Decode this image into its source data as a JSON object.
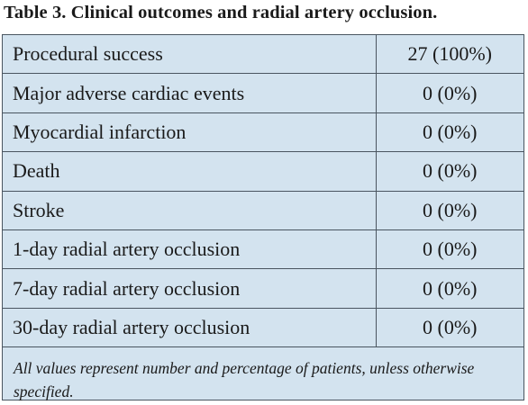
{
  "title": "Table 3. Clinical outcomes and radial artery occlusion.",
  "rows": [
    {
      "label": "Procedural success",
      "value": "27 (100%)"
    },
    {
      "label": "Major adverse cardiac events",
      "value": "0 (0%)"
    },
    {
      "label": "Myocardial infarction",
      "value": "0 (0%)"
    },
    {
      "label": "Death",
      "value": "0 (0%)"
    },
    {
      "label": "Stroke",
      "value": "0 (0%)"
    },
    {
      "label": "1-day radial artery occlusion",
      "value": "0 (0%)"
    },
    {
      "label": "7-day radial artery occlusion",
      "value": "0 (0%)"
    },
    {
      "label": "30-day radial artery occlusion",
      "value": "0 (0%)"
    }
  ],
  "footnote": "All values represent number and percentage of patients, unless otherwise specified.",
  "colors": {
    "table_background": "#d3e3ef",
    "border": "#4a5560"
  }
}
